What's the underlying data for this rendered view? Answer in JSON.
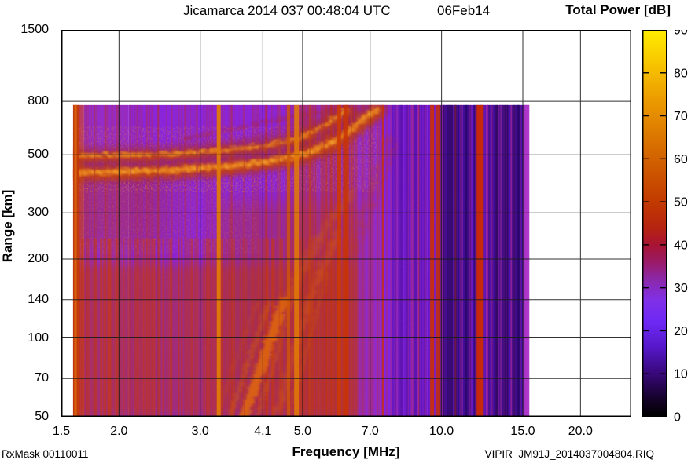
{
  "header": {
    "title": "Jicamarca 2014 037 00:48:04 UTC",
    "date": "06Feb14"
  },
  "footer": {
    "rx_mask": "RxMask 00110011",
    "file_id": "VIPIR  JM91J_2014037004804.RIQ"
  },
  "chart_data": {
    "type": "heatmap",
    "title": "Jicamarca 2014 037 00:48:04 UTC  06Feb14",
    "xlabel": "Frequency [MHz]",
    "ylabel": "Range [km]",
    "x_scale": "log",
    "y_scale": "log",
    "xlim": [
      1.5,
      25.8
    ],
    "ylim": [
      50,
      1500
    ],
    "x_ticks": [
      {
        "value": 1.5,
        "label": "1.5"
      },
      {
        "value": 2.0,
        "label": "2.0"
      },
      {
        "value": 3.0,
        "label": "3.0"
      },
      {
        "value": 4.1,
        "label": "4.1"
      },
      {
        "value": 5.0,
        "label": "5.0"
      },
      {
        "value": 7.0,
        "label": "7.0"
      },
      {
        "value": 10.0,
        "label": "10.0"
      },
      {
        "value": 15.0,
        "label": "15.0"
      },
      {
        "value": 20.0,
        "label": "20.0"
      }
    ],
    "y_ticks": [
      {
        "value": 1500,
        "label": "1500"
      },
      {
        "value": 800,
        "label": "800"
      },
      {
        "value": 500,
        "label": "500"
      },
      {
        "value": 300,
        "label": "300"
      },
      {
        "value": 200,
        "label": "200"
      },
      {
        "value": 140,
        "label": "140"
      },
      {
        "value": 100,
        "label": "100"
      },
      {
        "value": 70,
        "label": "70"
      },
      {
        "value": 50,
        "label": "50"
      }
    ],
    "grid": {
      "on": true,
      "x_lines": [
        2.0,
        3.0,
        4.1,
        5.0,
        7.0,
        10.0,
        15.0,
        20.0
      ],
      "y_lines": [
        800,
        500,
        300,
        200,
        140,
        100,
        70
      ],
      "color": "#1b1b1b"
    },
    "colorbar": {
      "title": "Total Power [dB]",
      "min": 0,
      "max": 90,
      "tick_step": 10,
      "position": "right",
      "stops": [
        {
          "value": 90,
          "color": "#FFEC00"
        },
        {
          "value": 82,
          "color": "#F7C400"
        },
        {
          "value": 74,
          "color": "#EC9C00"
        },
        {
          "value": 66,
          "color": "#DD7A00"
        },
        {
          "value": 58,
          "color": "#CE5A00"
        },
        {
          "value": 50,
          "color": "#C23A00"
        },
        {
          "value": 44,
          "color": "#B62410"
        },
        {
          "value": 40,
          "color": "#A81433"
        },
        {
          "value": 36,
          "color": "#9A1A66"
        },
        {
          "value": 32,
          "color": "#8C28A8"
        },
        {
          "value": 27,
          "color": "#8030E8"
        },
        {
          "value": 22,
          "color": "#6E28F4"
        },
        {
          "value": 16,
          "color": "#5518C8"
        },
        {
          "value": 10,
          "color": "#38087A"
        },
        {
          "value": 4,
          "color": "#140228"
        },
        {
          "value": 0,
          "color": "#000000"
        }
      ]
    },
    "data_extent": {
      "f_min_mhz": 1.59,
      "f_max_mhz": 15.5,
      "range_min_km": 50,
      "range_max_km": 775
    },
    "background_zones": [
      {
        "f_from": 1.59,
        "f_to": 1.68,
        "color": "#B84070"
      },
      {
        "f_from": 1.68,
        "f_to": 2.1,
        "color": "#942BC8"
      },
      {
        "f_from": 2.1,
        "f_to": 4.9,
        "color": "#8A24DC"
      },
      {
        "f_from": 4.9,
        "f_to": 7.4,
        "color": "#8F2AD2"
      },
      {
        "f_from": 7.4,
        "f_to": 9.8,
        "color": "#8322E0"
      },
      {
        "f_from": 9.8,
        "f_to": 10.6,
        "color": "#6A1AD2"
      },
      {
        "f_from": 10.6,
        "f_to": 13.4,
        "color": "#5614C4"
      },
      {
        "f_from": 13.4,
        "f_to": 15.0,
        "color": "#4C10AE"
      },
      {
        "f_from": 15.0,
        "f_to": 15.35,
        "color": "#5A16C0"
      },
      {
        "f_from": 15.35,
        "f_to": 15.5,
        "color": "#9A34D8"
      }
    ],
    "diffuse_washes": [
      {
        "f_from": 1.59,
        "f_to": 6.5,
        "r_from": 50,
        "r_to": 190,
        "color": "#B23322",
        "opacity": 0.5,
        "blur": 6
      },
      {
        "f_from": 3.3,
        "f_to": 6.6,
        "r_from": 50,
        "r_to": 330,
        "color": "#AE3020",
        "opacity": 0.35,
        "blur": 10
      },
      {
        "f_from": 1.59,
        "f_to": 2.6,
        "r_from": 230,
        "r_to": 420,
        "color": "#A82C20",
        "opacity": 0.3,
        "blur": 10
      }
    ],
    "striation_passes": [
      {
        "f_from": 1.62,
        "f_to": 15.45,
        "r_from": 50,
        "r_to": 775,
        "count": 300,
        "color": "#C23014",
        "max_opacity": 0.26,
        "max_width": 1.6,
        "seed": 11
      },
      {
        "f_from": 1.62,
        "f_to": 6.6,
        "r_from": 50,
        "r_to": 240,
        "count": 220,
        "color": "#C83810",
        "max_opacity": 0.42,
        "max_width": 2.0,
        "seed": 23
      },
      {
        "f_from": 4.9,
        "f_to": 6.6,
        "r_from": 50,
        "r_to": 775,
        "count": 90,
        "color": "#C23414",
        "max_opacity": 0.32,
        "max_width": 1.8,
        "seed": 31
      },
      {
        "f_from": 7.8,
        "f_to": 9.8,
        "r_from": 50,
        "r_to": 775,
        "count": 60,
        "color": "#4A0EA8",
        "max_opacity": 0.35,
        "max_width": 2.2,
        "seed": 41
      },
      {
        "f_from": 9.9,
        "f_to": 15.0,
        "r_from": 50,
        "r_to": 775,
        "count": 95,
        "color": "#2A0768",
        "max_opacity": 0.55,
        "max_width": 2.6,
        "seed": 53
      },
      {
        "f_from": 10.0,
        "f_to": 15.0,
        "r_from": 50,
        "r_to": 775,
        "count": 25,
        "color": "#B830B8",
        "max_opacity": 0.38,
        "max_width": 1.4,
        "seed": 61
      }
    ],
    "speckle_regions": [
      {
        "f_from": 1.59,
        "f_to": 7.3,
        "r_from": 360,
        "r_to": 640,
        "filter": "speckle",
        "opacity": 0.55
      },
      {
        "f_from": 1.59,
        "f_to": 4.0,
        "r_from": 210,
        "r_to": 420,
        "filter": "speckle",
        "opacity": 0.3
      },
      {
        "f_from": 1.59,
        "f_to": 9.8,
        "r_from": 50,
        "r_to": 775,
        "filter": "grain",
        "opacity": 0.2
      }
    ],
    "rfi_stripes": [
      {
        "f": 1.615,
        "w": 8,
        "color": "#C33A08",
        "opacity": 0.95
      },
      {
        "f": 1.61,
        "w": 3,
        "color": "#D96A10",
        "opacity": 0.85
      },
      {
        "f": 1.77,
        "w": 2,
        "color": "#B03028",
        "opacity": 0.5
      },
      {
        "f": 2.12,
        "w": 2,
        "color": "#A62A66",
        "opacity": 0.4
      },
      {
        "f": 2.43,
        "w": 2,
        "color": "#B03028",
        "opacity": 0.45
      },
      {
        "f": 2.95,
        "w": 3,
        "color": "#B23050",
        "opacity": 0.4
      },
      {
        "f": 3.29,
        "w": 5,
        "color": "#E07A08",
        "opacity": 0.95
      },
      {
        "f": 3.74,
        "w": 2,
        "color": "#B23040",
        "opacity": 0.35
      },
      {
        "f": 4.45,
        "w": 2,
        "color": "#C04018",
        "opacity": 0.4
      },
      {
        "f": 4.66,
        "w": 4,
        "color": "#D05808",
        "opacity": 0.8
      },
      {
        "f": 4.85,
        "w": 6,
        "color": "#E07808",
        "opacity": 0.9
      },
      {
        "f": 5.18,
        "w": 2,
        "color": "#C04010",
        "opacity": 0.5
      },
      {
        "f": 5.57,
        "w": 2,
        "color": "#B83020",
        "opacity": 0.4
      },
      {
        "f": 6.0,
        "w": 5,
        "color": "#CC3A06",
        "opacity": 0.9
      },
      {
        "f": 6.19,
        "w": 5,
        "color": "#C83206",
        "opacity": 0.85
      },
      {
        "f": 6.38,
        "w": 2,
        "color": "#C04020",
        "opacity": 0.5
      },
      {
        "f": 7.47,
        "w": 3,
        "color": "#C83208",
        "opacity": 0.8
      },
      {
        "f": 8.0,
        "w": 2,
        "color": "#B02880",
        "opacity": 0.3
      },
      {
        "f": 9.54,
        "w": 5,
        "color": "#CC3006",
        "opacity": 0.9
      },
      {
        "f": 9.84,
        "w": 5,
        "color": "#C42E06",
        "opacity": 0.85
      },
      {
        "f": 10.35,
        "w": 3,
        "color": "#3A0C70",
        "opacity": 0.5
      },
      {
        "f": 10.72,
        "w": 2,
        "color": "#C03010",
        "opacity": 0.4
      },
      {
        "f": 12.1,
        "w": 8,
        "color": "#CC2A04",
        "opacity": 0.95
      },
      {
        "f": 12.55,
        "w": 2,
        "color": "#C828A0",
        "opacity": 0.6
      },
      {
        "f": 13.16,
        "w": 3,
        "color": "#2E0858",
        "opacity": 0.55
      },
      {
        "f": 13.68,
        "w": 4,
        "color": "#30095E",
        "opacity": 0.55
      },
      {
        "f": 14.33,
        "w": 3,
        "color": "#2E0858",
        "opacity": 0.5
      },
      {
        "f": 15.3,
        "w": 6,
        "color": "#B63ACC",
        "opacity": 0.9
      }
    ],
    "traces": [
      {
        "name": "F-region echo main (O-mode)",
        "weight": 1.0,
        "points": [
          [
            1.59,
            435
          ],
          [
            2.0,
            438
          ],
          [
            2.52,
            444
          ],
          [
            3.04,
            453
          ],
          [
            3.74,
            466
          ],
          [
            4.38,
            486
          ],
          [
            4.94,
            508
          ],
          [
            5.44,
            541
          ],
          [
            5.9,
            581
          ],
          [
            6.38,
            647
          ],
          [
            6.86,
            719
          ],
          [
            7.2,
            760
          ]
        ]
      },
      {
        "name": "F-region echo upper (X-mode)",
        "weight": 0.55,
        "points": [
          [
            1.59,
            503
          ],
          [
            2.42,
            510
          ],
          [
            3.3,
            528
          ],
          [
            4.2,
            555
          ],
          [
            4.84,
            585
          ],
          [
            5.33,
            639
          ],
          [
            5.77,
            693
          ],
          [
            6.2,
            758
          ]
        ]
      }
    ],
    "oblique_streaks": [
      {
        "points": [
          [
            3.68,
            50
          ],
          [
            4.05,
            80
          ],
          [
            4.51,
            140
          ]
        ],
        "width": 13,
        "opacity": 0.85,
        "color": "#E06810",
        "blur": 2
      },
      {
        "points": [
          [
            4.51,
            140
          ],
          [
            5.5,
            270
          ],
          [
            6.33,
            372
          ]
        ],
        "width": 8,
        "opacity": 0.5,
        "color": "#D05810",
        "blur": 2.5
      },
      {
        "points": [
          [
            3.42,
            50
          ],
          [
            4.2,
            140
          ]
        ],
        "width": 6,
        "opacity": 0.5,
        "color": "#D05810",
        "blur": 2
      },
      {
        "points": [
          [
            3.2,
            50
          ],
          [
            3.95,
            140
          ]
        ],
        "width": 4,
        "opacity": 0.35,
        "color": "#C84810",
        "blur": 2
      },
      {
        "points": [
          [
            3.95,
            50
          ],
          [
            4.75,
            150
          ]
        ],
        "width": 5,
        "opacity": 0.45,
        "color": "#D05810",
        "blur": 2
      },
      {
        "points": [
          [
            4.3,
            50
          ],
          [
            5.2,
            160
          ],
          [
            5.9,
            260
          ]
        ],
        "width": 7,
        "opacity": 0.5,
        "color": "#D85C10",
        "blur": 2.5
      },
      {
        "points": [
          [
            4.6,
            50
          ],
          [
            5.6,
            180
          ]
        ],
        "width": 5,
        "opacity": 0.4,
        "color": "#C85010",
        "blur": 2
      },
      {
        "points": [
          [
            6.2,
            215
          ],
          [
            7.6,
            600
          ]
        ],
        "width": 5,
        "opacity": 0.4,
        "color": "#C03810",
        "blur": 2.5
      },
      {
        "points": [
          [
            6.5,
            215
          ],
          [
            7.9,
            560
          ]
        ],
        "width": 3,
        "opacity": 0.3,
        "color": "#C03810",
        "blur": 2
      },
      {
        "points": [
          [
            2.72,
            585
          ],
          [
            5.75,
            760
          ]
        ],
        "width": 2.5,
        "opacity": 0.45,
        "color": "#B02810",
        "blur": 1
      },
      {
        "points": [
          [
            3.1,
            520
          ],
          [
            5.2,
            700
          ]
        ],
        "width": 2,
        "opacity": 0.28,
        "color": "#B02810",
        "blur": 1
      }
    ]
  }
}
